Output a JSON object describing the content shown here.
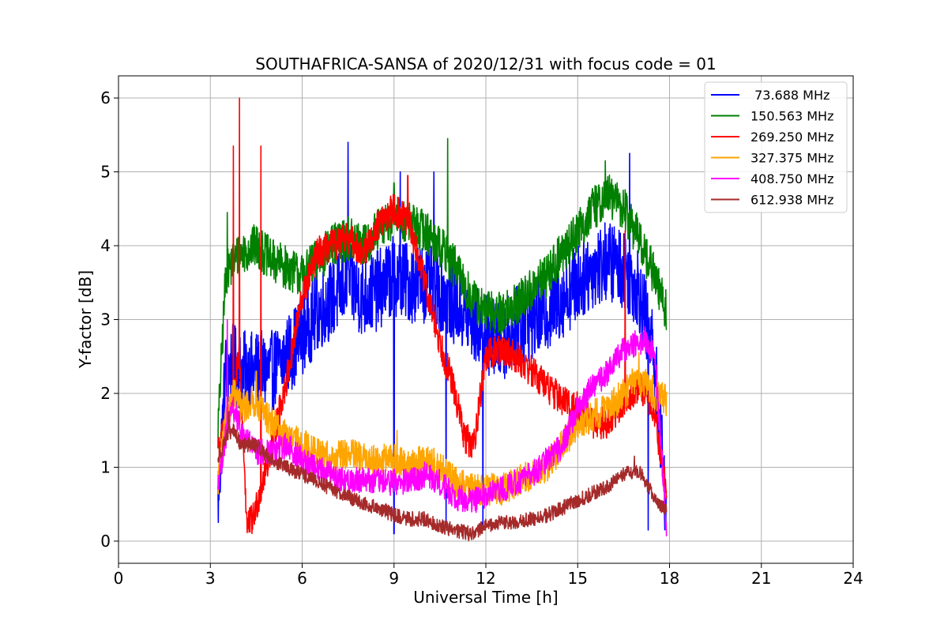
{
  "chart_data": {
    "type": "line",
    "title": "SOUTHAFRICA-SANSA of 2020/12/31 with focus code = 01",
    "xlabel": "Universal Time [h]",
    "ylabel": "Y-factor [dB]",
    "xlim": [
      0,
      24
    ],
    "ylim": [
      -0.3,
      6.3
    ],
    "xticks": [
      0,
      3,
      6,
      9,
      12,
      15,
      18,
      21,
      24
    ],
    "yticks": [
      0,
      1,
      2,
      3,
      4,
      5,
      6
    ],
    "xtick_labels": [
      "0",
      "3",
      "6",
      "9",
      "12",
      "15",
      "18",
      "21",
      "24"
    ],
    "ytick_labels": [
      "0",
      "1",
      "2",
      "3",
      "4",
      "5",
      "6"
    ],
    "grid": true,
    "legend_position": "top-right",
    "series": [
      {
        "name": " 73.688 MHz",
        "color": "#0000ff",
        "x": [
          3.25,
          3.5,
          3.75,
          4.0,
          4.5,
          5.0,
          5.5,
          6.0,
          6.5,
          7.0,
          7.5,
          8.0,
          8.5,
          9.0,
          9.5,
          10.0,
          10.5,
          11.0,
          11.5,
          12.0,
          12.5,
          13.0,
          13.5,
          14.0,
          14.5,
          15.0,
          15.5,
          16.0,
          16.5,
          17.0,
          17.5,
          17.9
        ],
        "values": [
          0.5,
          2.3,
          2.4,
          2.3,
          2.3,
          2.3,
          2.5,
          2.8,
          3.1,
          3.3,
          3.5,
          3.3,
          3.4,
          3.6,
          3.5,
          3.5,
          3.4,
          3.2,
          3.0,
          2.8,
          2.7,
          2.9,
          3.0,
          3.1,
          3.3,
          3.5,
          3.7,
          3.8,
          3.7,
          3.4,
          2.5,
          0.4
        ],
        "spikes": [
          [
            7.5,
            5.4
          ],
          [
            9.2,
            5.0
          ],
          [
            10.3,
            5.0
          ],
          [
            16.7,
            5.25
          ],
          [
            9.0,
            0.1
          ],
          [
            10.7,
            0.2
          ],
          [
            11.9,
            0.2
          ],
          [
            17.3,
            0.15
          ]
        ]
      },
      {
        "name": "150.563 MHz",
        "color": "#008000",
        "x": [
          3.25,
          3.5,
          3.75,
          4.0,
          4.5,
          5.0,
          5.5,
          6.0,
          6.5,
          7.0,
          7.5,
          8.0,
          8.5,
          9.0,
          9.5,
          10.0,
          10.5,
          11.0,
          11.5,
          12.0,
          12.5,
          13.0,
          13.5,
          14.0,
          14.5,
          15.0,
          15.5,
          16.0,
          16.5,
          17.0,
          17.5,
          17.9
        ],
        "values": [
          1.5,
          3.6,
          3.8,
          3.9,
          4.0,
          3.8,
          3.7,
          3.6,
          3.8,
          4.0,
          4.1,
          4.0,
          4.2,
          4.4,
          4.3,
          4.2,
          4.0,
          3.7,
          3.3,
          3.1,
          3.1,
          3.2,
          3.4,
          3.6,
          3.9,
          4.2,
          4.5,
          4.7,
          4.5,
          4.1,
          3.6,
          3.1
        ],
        "spikes": [
          [
            10.75,
            5.45
          ],
          [
            15.9,
            5.15
          ],
          [
            9.0,
            4.85
          ],
          [
            3.55,
            4.45
          ]
        ]
      },
      {
        "name": "269.250 MHz",
        "color": "#ff0000",
        "x": [
          3.25,
          3.5,
          3.75,
          3.95,
          4.2,
          4.4,
          4.7,
          5.0,
          5.5,
          6.0,
          6.5,
          7.0,
          7.5,
          8.0,
          8.5,
          9.0,
          9.5,
          10.0,
          10.5,
          11.0,
          11.3,
          11.6,
          12.0,
          12.5,
          13.0,
          13.5,
          14.0,
          14.5,
          15.0,
          15.5,
          16.0,
          16.5,
          17.0,
          17.5,
          17.9
        ],
        "values": [
          1.3,
          1.5,
          2.0,
          2.5,
          0.2,
          0.3,
          0.8,
          1.3,
          2.2,
          3.3,
          3.9,
          4.0,
          4.1,
          3.9,
          4.3,
          4.5,
          4.3,
          3.5,
          2.7,
          2.0,
          1.4,
          1.3,
          2.5,
          2.6,
          2.5,
          2.3,
          2.1,
          1.9,
          1.8,
          1.6,
          1.6,
          1.9,
          2.1,
          1.8,
          0.6
        ],
        "spikes": [
          [
            3.95,
            6.0
          ],
          [
            4.65,
            5.35
          ],
          [
            3.75,
            5.35
          ],
          [
            9.45,
            4.95
          ],
          [
            16.55,
            4.2
          ]
        ]
      },
      {
        "name": "327.375 MHz",
        "color": "#ffa500",
        "x": [
          3.25,
          3.5,
          3.75,
          4.0,
          4.5,
          5.0,
          5.5,
          6.0,
          6.5,
          7.0,
          7.5,
          8.0,
          8.5,
          9.0,
          9.5,
          10.0,
          10.5,
          11.0,
          11.5,
          12.0,
          12.5,
          13.0,
          13.5,
          14.0,
          14.5,
          15.0,
          15.5,
          16.0,
          16.5,
          17.0,
          17.5,
          17.9
        ],
        "values": [
          0.8,
          1.6,
          2.0,
          1.8,
          1.9,
          1.6,
          1.4,
          1.3,
          1.2,
          1.1,
          1.2,
          1.1,
          1.1,
          1.1,
          1.0,
          1.1,
          1.0,
          0.8,
          0.7,
          0.7,
          0.7,
          0.8,
          0.9,
          1.0,
          1.3,
          1.6,
          1.7,
          1.8,
          2.0,
          2.2,
          2.0,
          1.9
        ],
        "spikes": [
          [
            4.5,
            2.3
          ],
          [
            17.0,
            2.55
          ],
          [
            9.1,
            1.5
          ]
        ]
      },
      {
        "name": "408.750 MHz",
        "color": "#ff00ff",
        "x": [
          3.25,
          3.5,
          3.75,
          4.0,
          4.5,
          5.0,
          5.5,
          6.0,
          6.5,
          7.0,
          7.5,
          8.0,
          8.5,
          9.0,
          9.5,
          10.0,
          10.5,
          11.0,
          11.5,
          12.0,
          12.5,
          13.0,
          13.5,
          14.0,
          14.5,
          15.0,
          15.5,
          16.0,
          16.5,
          17.0,
          17.5,
          17.9
        ],
        "values": [
          0.8,
          1.4,
          1.8,
          1.5,
          1.2,
          1.2,
          1.3,
          1.1,
          1.0,
          0.9,
          0.8,
          0.85,
          0.8,
          0.8,
          0.8,
          0.9,
          0.8,
          0.6,
          0.55,
          0.6,
          0.7,
          0.8,
          0.9,
          1.1,
          1.3,
          1.8,
          2.1,
          2.3,
          2.6,
          2.7,
          2.6,
          0.2
        ],
        "spikes": [
          [
            3.55,
            3.0
          ],
          [
            17.2,
            2.9
          ]
        ]
      },
      {
        "name": "612.938 MHz",
        "color": "#a52a2a",
        "x": [
          3.25,
          3.5,
          3.75,
          4.0,
          4.5,
          5.0,
          5.5,
          6.0,
          6.5,
          7.0,
          7.5,
          8.0,
          8.5,
          9.0,
          9.5,
          10.0,
          10.5,
          11.0,
          11.5,
          12.0,
          12.5,
          13.0,
          13.5,
          14.0,
          14.5,
          15.0,
          15.5,
          16.0,
          16.5,
          17.0,
          17.5,
          17.9
        ],
        "values": [
          1.1,
          1.4,
          1.5,
          1.3,
          1.3,
          1.1,
          1.0,
          0.9,
          0.8,
          0.7,
          0.6,
          0.5,
          0.45,
          0.35,
          0.3,
          0.3,
          0.2,
          0.15,
          0.1,
          0.2,
          0.25,
          0.25,
          0.3,
          0.35,
          0.45,
          0.55,
          0.65,
          0.75,
          0.9,
          0.95,
          0.6,
          0.4
        ],
        "spikes": [
          [
            16.85,
            1.15
          ],
          [
            3.6,
            1.75
          ]
        ]
      }
    ]
  }
}
